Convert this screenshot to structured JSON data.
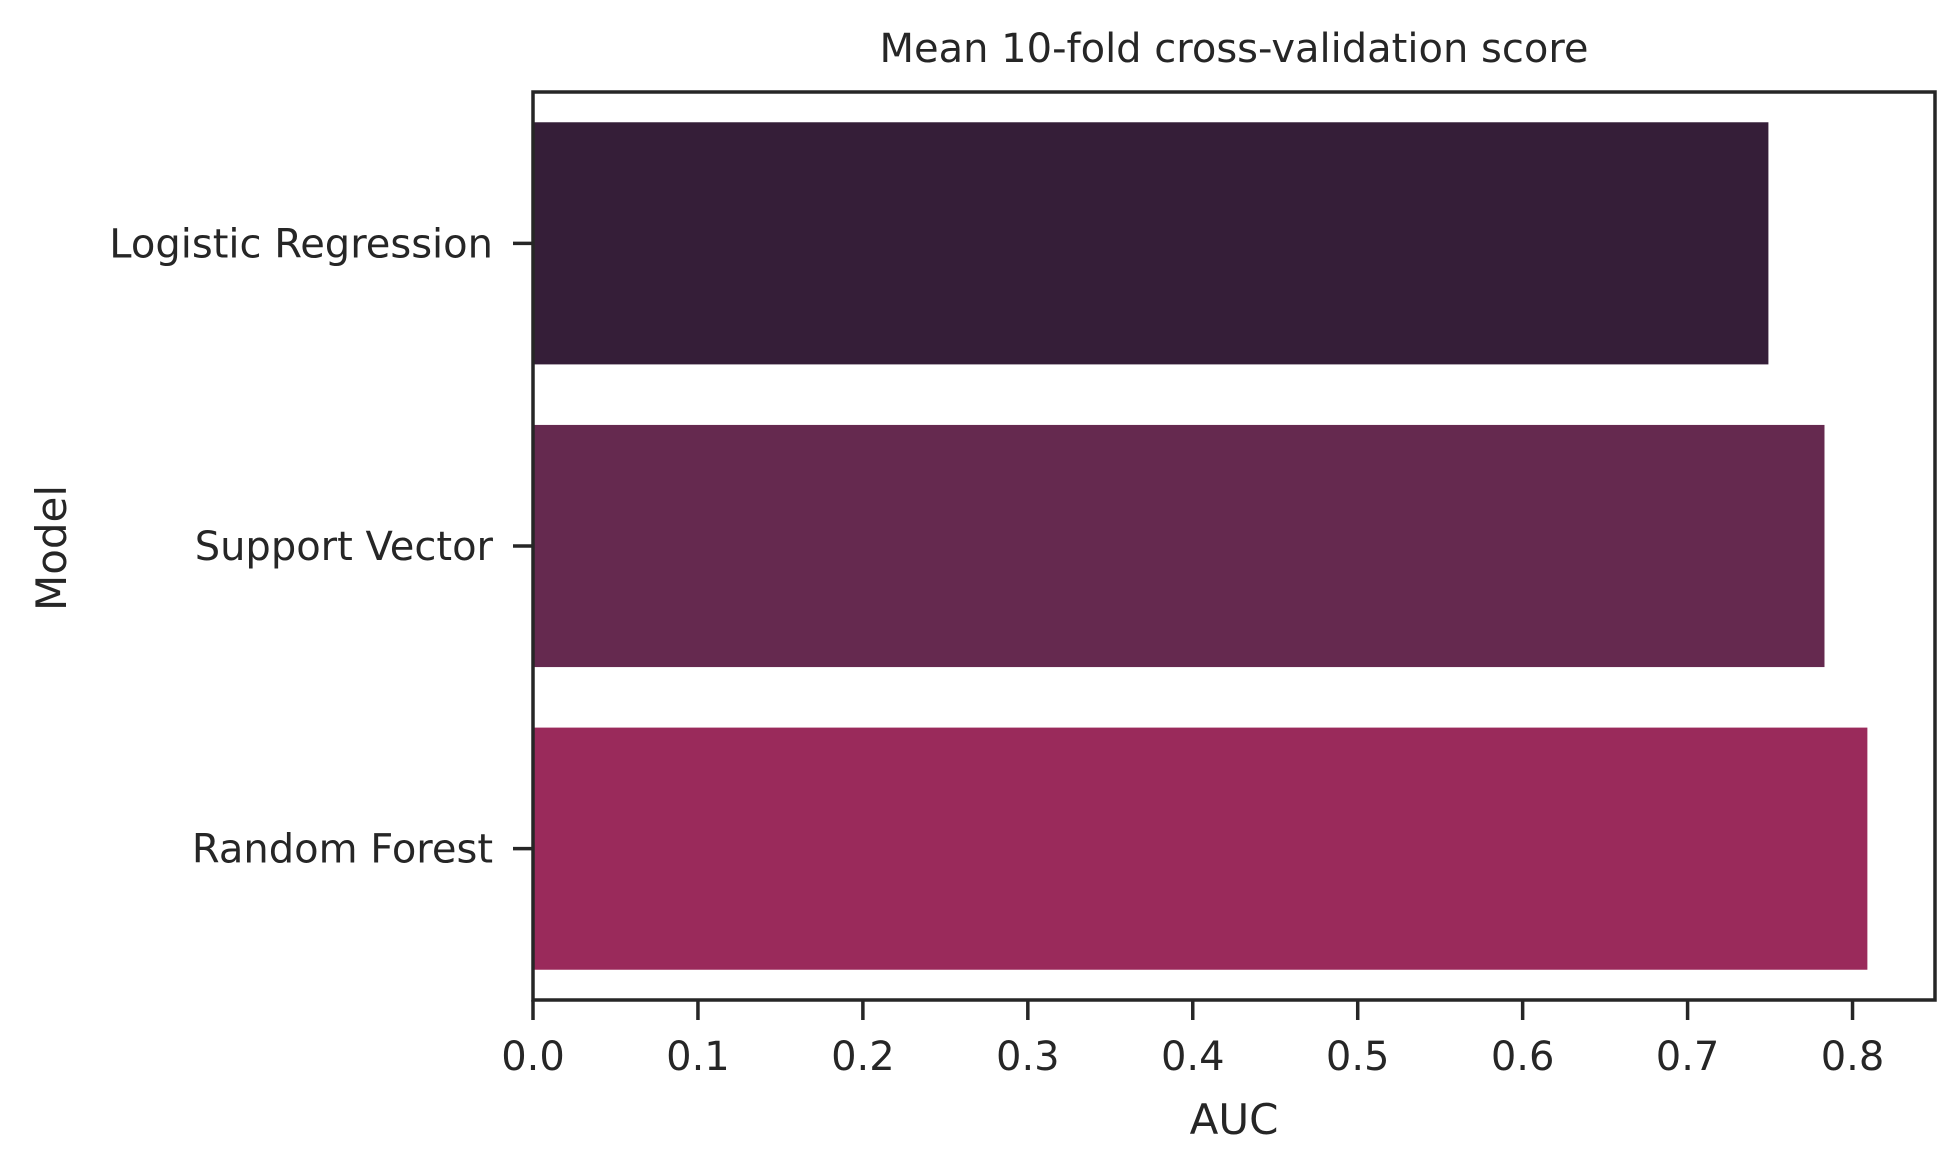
{
  "chart_data": {
    "type": "bar",
    "orientation": "horizontal",
    "title": "Mean 10-fold cross-validation score",
    "xlabel": "AUC",
    "ylabel": "Model",
    "categories": [
      "Logistic Regression",
      "Support Vector",
      "Random Forest"
    ],
    "values": [
      0.749,
      0.783,
      0.809
    ],
    "colors": [
      "#351e38",
      "#65294f",
      "#9a2a5b"
    ],
    "xlim": [
      0.0,
      0.85
    ],
    "xticks": [
      "0.0",
      "0.1",
      "0.2",
      "0.3",
      "0.4",
      "0.5",
      "0.6",
      "0.7",
      "0.8"
    ],
    "grid": false,
    "legend": "none"
  }
}
